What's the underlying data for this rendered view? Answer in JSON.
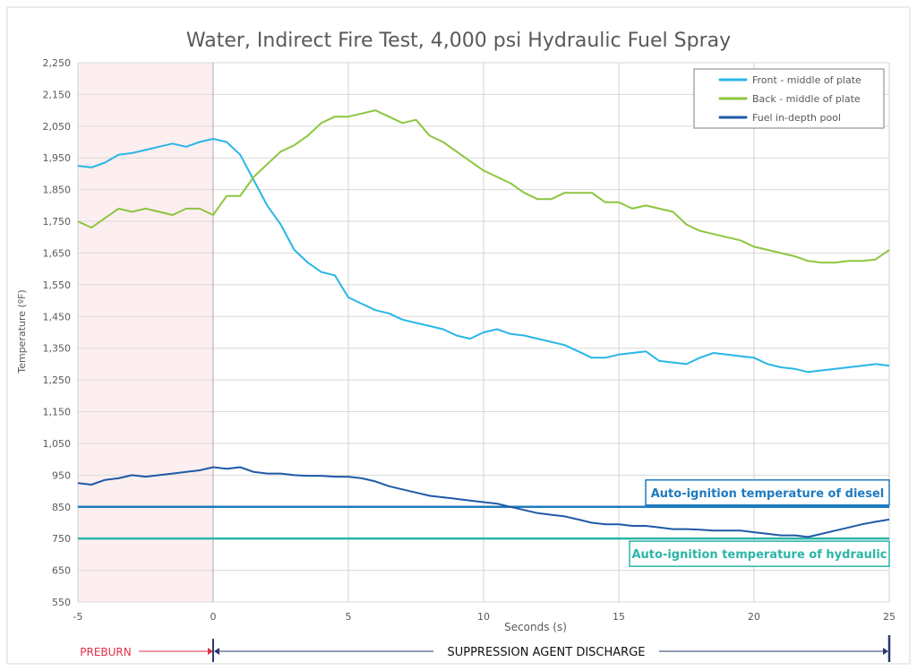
{
  "chart_data": {
    "type": "line",
    "title": "Water, Indirect Fire Test, 4,000 psi Hydraulic Fuel Spray",
    "xlabel": "Seconds (s)",
    "ylabel": "Temperature (ºF)",
    "xlim": [
      -5,
      25
    ],
    "ylim": [
      550,
      2250
    ],
    "xticks": [
      -5,
      0,
      5,
      10,
      15,
      20,
      25
    ],
    "xtick_labels": [
      "-5",
      "0",
      "5",
      "10",
      "15",
      "20",
      "25"
    ],
    "yticks": [
      550,
      650,
      750,
      850,
      950,
      1050,
      1150,
      1250,
      1350,
      1450,
      1550,
      1650,
      1750,
      1850,
      1950,
      2050,
      2150,
      2250
    ],
    "ytick_labels": [
      "550",
      "650",
      "750",
      "850",
      "950",
      "1,050",
      "1,150",
      "1,250",
      "1,350",
      "1,450",
      "1,550",
      "1,650",
      "1,750",
      "1,850",
      "1,950",
      "2,050",
      "2,150",
      "2,250"
    ],
    "grid": true,
    "legend_position": "top-right",
    "x": [
      -5,
      -4.5,
      -4,
      -3.5,
      -3,
      -2.5,
      -2,
      -1.5,
      -1,
      -0.5,
      0,
      0.5,
      1,
      1.5,
      2,
      2.5,
      3,
      3.5,
      4,
      4.5,
      5,
      5.5,
      6,
      6.5,
      7,
      7.5,
      8,
      8.5,
      9,
      9.5,
      10,
      10.5,
      11,
      11.5,
      12,
      12.5,
      13,
      13.5,
      14,
      14.5,
      15,
      15.5,
      16,
      16.5,
      17,
      17.5,
      18,
      18.5,
      19,
      19.5,
      20,
      20.5,
      21,
      21.5,
      22,
      22.5,
      23,
      23.5,
      24,
      24.5,
      25
    ],
    "series": [
      {
        "name": "Front - middle of plate",
        "color": "#29b6e6",
        "values": [
          1925,
          1920,
          1935,
          1960,
          1965,
          1975,
          1985,
          1995,
          1985,
          2000,
          2010,
          2000,
          1960,
          1880,
          1800,
          1740,
          1660,
          1620,
          1590,
          1580,
          1510,
          1490,
          1470,
          1460,
          1440,
          1430,
          1420,
          1410,
          1390,
          1380,
          1400,
          1410,
          1395,
          1390,
          1380,
          1370,
          1360,
          1340,
          1320,
          1320,
          1330,
          1335,
          1340,
          1310,
          1305,
          1300,
          1320,
          1335,
          1330,
          1325,
          1320,
          1300,
          1290,
          1285,
          1275,
          1280,
          1285,
          1290,
          1295,
          1300,
          1295
        ]
      },
      {
        "name": "Back - middle of plate",
        "color": "#8cc63f",
        "values": [
          1750,
          1730,
          1760,
          1790,
          1780,
          1790,
          1780,
          1770,
          1790,
          1790,
          1770,
          1830,
          1830,
          1890,
          1930,
          1970,
          1990,
          2020,
          2060,
          2080,
          2080,
          2090,
          2100,
          2080,
          2060,
          2070,
          2020,
          2000,
          1970,
          1940,
          1910,
          1890,
          1870,
          1840,
          1820,
          1820,
          1840,
          1840,
          1840,
          1810,
          1810,
          1790,
          1800,
          1790,
          1780,
          1740,
          1720,
          1710,
          1700,
          1690,
          1670,
          1660,
          1650,
          1640,
          1625,
          1620,
          1620,
          1625,
          1625,
          1630,
          1660
        ]
      },
      {
        "name": "Fuel in-depth pool",
        "color": "#1f5aa6",
        "values": [
          925,
          920,
          935,
          940,
          950,
          945,
          950,
          955,
          960,
          965,
          975,
          970,
          975,
          960,
          955,
          955,
          950,
          948,
          948,
          945,
          945,
          940,
          930,
          915,
          905,
          895,
          885,
          880,
          875,
          870,
          865,
          860,
          850,
          840,
          830,
          825,
          820,
          810,
          800,
          795,
          795,
          790,
          790,
          785,
          780,
          780,
          778,
          775,
          775,
          775,
          770,
          765,
          760,
          760,
          755,
          765,
          775,
          785,
          795,
          803,
          810
        ]
      }
    ],
    "reference_lines": [
      {
        "label": "Auto-ignition temperature of diesel",
        "value": 850,
        "color": "#1f7bbf"
      },
      {
        "label": "Auto-ignition temperature of hydraulic",
        "value": 750,
        "color": "#2bb5a8"
      }
    ],
    "phases": [
      {
        "label": "PREBURN",
        "from": -5,
        "to": 0,
        "color": "#e0304a"
      },
      {
        "label": "SUPPRESSION AGENT DISCHARGE",
        "from": 0,
        "to": 25,
        "color": "#2a3a6e"
      }
    ]
  }
}
